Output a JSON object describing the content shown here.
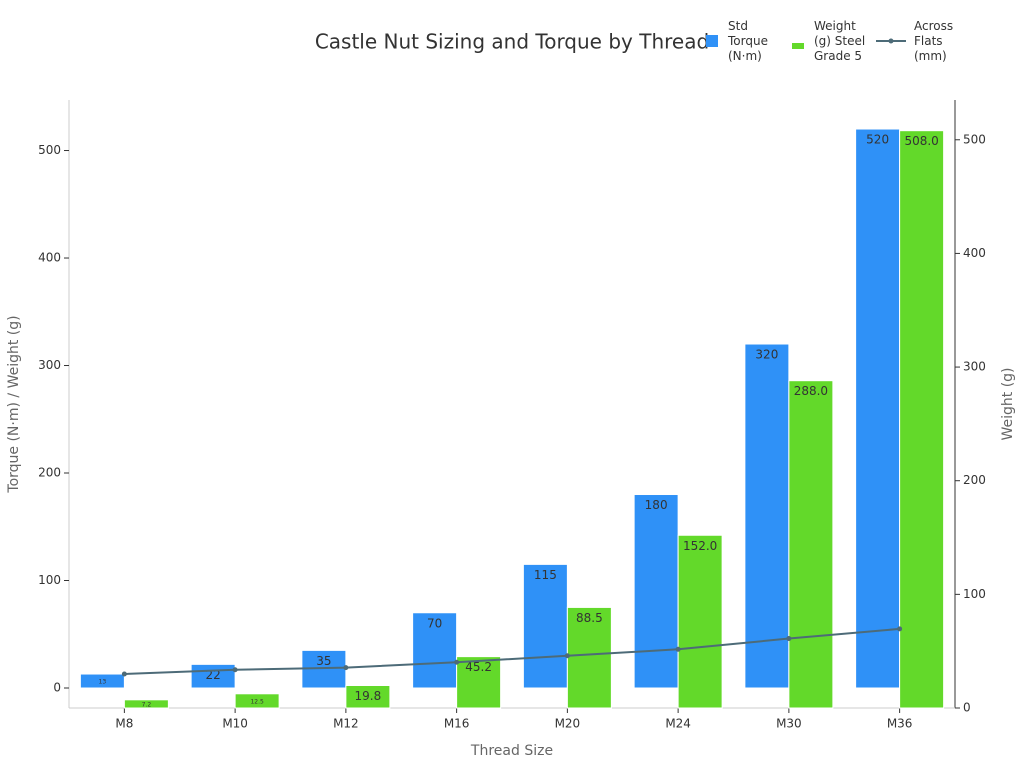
{
  "chart_data": {
    "type": "bar",
    "title": "Castle Nut Sizing and Torque by Thread",
    "x_label": "Thread Size",
    "y_label": "Torque (N·m) / Weight (g)",
    "y2_label": "Weight (g)",
    "categories": [
      "M8",
      "M10",
      "M12",
      "M16",
      "M20",
      "M24",
      "M30",
      "M36"
    ],
    "series": [
      {
        "name": "Std Torque (N·m)",
        "color": "#2f91f7",
        "type": "bar",
        "values": [
          13,
          22,
          35,
          70,
          115,
          180,
          320,
          520
        ]
      },
      {
        "name": "Weight (g) Steel Grade 5",
        "color": "#63d92a",
        "type": "bar",
        "axis": "y2",
        "values": [
          7.2,
          12.5,
          19.8,
          45.2,
          88.5,
          152.0,
          288.0,
          508.0
        ],
        "value_labels": [
          "7.2",
          "12.5",
          "19.8",
          "45.2",
          "88.5",
          "152.0",
          "288.0",
          "508.0"
        ]
      },
      {
        "name": "Across Flats (mm)",
        "color": "#4d6b78",
        "type": "line",
        "values": [
          13,
          17,
          19,
          24,
          30,
          36,
          46,
          55
        ]
      }
    ],
    "ylim": [
      -18.6,
      547
    ],
    "yticks": [
      0,
      100,
      200,
      300,
      400,
      500
    ],
    "y2lim": [
      0,
      535
    ],
    "y2ticks": [
      0,
      100,
      200,
      300,
      400,
      500
    ]
  }
}
